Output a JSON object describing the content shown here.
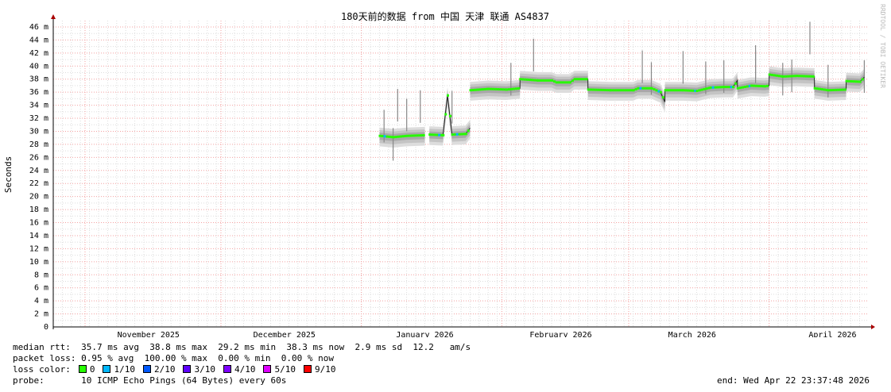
{
  "chart_data": {
    "type": "line",
    "title": "180天前的数据 from 中国 天津 联通 AS4837",
    "ylabel": "Seconds",
    "y_unit_suffix": "m",
    "ylim": [
      0,
      46
    ],
    "yticks": [
      0,
      2,
      4,
      6,
      8,
      10,
      12,
      14,
      16,
      18,
      20,
      22,
      24,
      26,
      28,
      30,
      32,
      34,
      36,
      38,
      40,
      42,
      44,
      46
    ],
    "x_start": "2025-10-24T23:37:48",
    "x_end": "2026-04-22T23:37:48",
    "xtick_labels": [
      {
        "label": "November 2025",
        "date": "2025-11-15"
      },
      {
        "label": "December 2025",
        "date": "2025-12-15"
      },
      {
        "label": "January 2026",
        "date": "2026-01-15"
      },
      {
        "label": "February 2026",
        "date": "2026-02-14"
      },
      {
        "label": "March 2026",
        "date": "2026-03-15"
      },
      {
        "label": "April 2026",
        "date": "2026-04-15"
      }
    ],
    "month_lines": [
      "2025-11-01",
      "2025-12-01",
      "2026-01-01",
      "2026-02-01",
      "2026-03-01",
      "2026-04-01"
    ],
    "grid": true,
    "series": [
      {
        "values_ms": [
          [
            [
              "2026-01-05",
              29.3
            ],
            [
              "2026-01-08",
              29.1
            ],
            [
              "2026-01-11",
              29.3
            ],
            [
              "2026-01-15",
              29.4
            ]
          ],
          [
            [
              "2026-01-16",
              29.5
            ],
            [
              "2026-01-19",
              29.4
            ],
            [
              "2026-01-20",
              35.5
            ],
            [
              "2026-01-21",
              29.5
            ],
            [
              "2026-01-24",
              29.6
            ],
            [
              "2026-01-25",
              30.5
            ]
          ],
          [
            [
              "2026-01-25",
              36.3
            ],
            [
              "2026-01-29",
              36.5
            ],
            [
              "2026-02-02",
              36.4
            ],
            [
              "2026-02-05",
              36.6
            ],
            [
              "2026-02-05",
              38.0
            ],
            [
              "2026-02-09",
              37.8
            ],
            [
              "2026-02-12",
              37.8
            ],
            [
              "2026-02-13",
              37.5
            ],
            [
              "2026-02-16",
              37.5
            ],
            [
              "2026-02-17",
              38.0
            ],
            [
              "2026-02-20",
              38.0
            ],
            [
              "2026-02-20",
              36.4
            ],
            [
              "2026-02-25",
              36.3
            ],
            [
              "2026-03-02",
              36.3
            ],
            [
              "2026-03-03",
              36.6
            ],
            [
              "2026-03-06",
              36.6
            ],
            [
              "2026-03-08",
              36.0
            ],
            [
              "2026-03-09",
              34.5
            ],
            [
              "2026-03-09",
              36.3
            ],
            [
              "2026-03-13",
              36.3
            ],
            [
              "2026-03-16",
              36.2
            ],
            [
              "2026-03-19",
              36.7
            ],
            [
              "2026-03-22",
              36.8
            ],
            [
              "2026-03-24",
              36.8
            ],
            [
              "2026-03-25",
              37.8
            ],
            [
              "2026-03-25",
              36.6
            ],
            [
              "2026-03-28",
              37.0
            ],
            [
              "2026-03-31",
              36.9
            ],
            [
              "2026-04-01",
              37.0
            ],
            [
              "2026-04-01",
              38.7
            ],
            [
              "2026-04-04",
              38.4
            ],
            [
              "2026-04-07",
              38.5
            ],
            [
              "2026-04-11",
              38.4
            ],
            [
              "2026-04-11",
              36.6
            ],
            [
              "2026-04-14",
              36.3
            ],
            [
              "2026-04-18",
              36.4
            ],
            [
              "2026-04-18",
              37.7
            ],
            [
              "2026-04-21",
              37.6
            ],
            [
              "2026-04-22",
              38.3
            ]
          ]
        ]
      }
    ],
    "spikes_ms": [
      [
        "2026-01-06",
        33.3
      ],
      [
        "2026-01-08",
        30.5
      ],
      [
        "2026-01-09",
        36.5
      ],
      [
        "2026-01-11",
        35.0
      ],
      [
        "2026-01-14",
        36.3
      ],
      [
        "2026-01-21",
        36.2
      ],
      [
        "2026-02-03",
        40.5
      ],
      [
        "2026-02-08",
        44.2
      ],
      [
        "2026-03-04",
        42.4
      ],
      [
        "2026-03-06",
        40.6
      ],
      [
        "2026-03-13",
        42.3
      ],
      [
        "2026-03-18",
        40.7
      ],
      [
        "2026-03-22",
        40.9
      ],
      [
        "2026-03-29",
        42.4
      ],
      [
        "2026-03-29",
        43.2
      ],
      [
        "2026-04-04",
        40.5
      ],
      [
        "2026-04-06",
        41.0
      ],
      [
        "2026-04-10",
        46.8
      ],
      [
        "2026-04-14",
        40.2
      ],
      [
        "2026-04-22",
        40.9
      ]
    ]
  },
  "watermark": "RRDTOOL / TOBI OETIKER",
  "legend": {
    "median_label": "median rtt:",
    "median_values": "35.7 ms avg  38.8 ms max  29.2 ms min  38.3 ms now  2.9 ms sd  12.2   am/s",
    "loss_label": "packet loss:",
    "loss_values": "0.95 % avg  100.00 % max  0.00 % min  0.00 % now",
    "color_label": "loss color:",
    "loss_colors": [
      {
        "label": "0",
        "color": "#26ff00"
      },
      {
        "label": "1/10",
        "color": "#00b8ff"
      },
      {
        "label": "2/10",
        "color": "#0059ff"
      },
      {
        "label": "3/10",
        "color": "#5e00ff"
      },
      {
        "label": "4/10",
        "color": "#7e00ff"
      },
      {
        "label": "5/10",
        "color": "#dd00ff"
      },
      {
        "label": "9/10",
        "color": "#ff0000"
      }
    ],
    "probe_label": "probe:",
    "probe_value": "10 ICMP Echo Pings (64 Bytes) every 60s",
    "end_text": "end: Wed Apr 22 23:37:48 2026"
  }
}
